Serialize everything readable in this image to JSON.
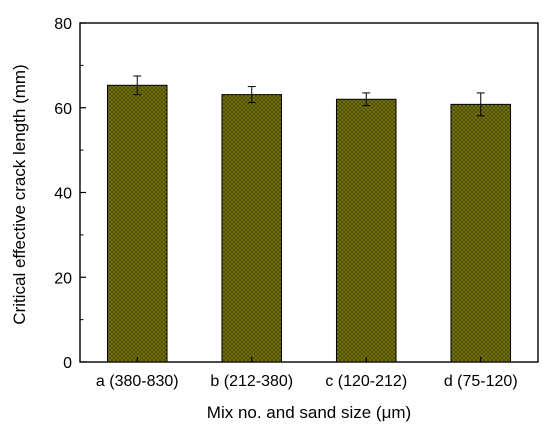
{
  "chart_data": {
    "type": "bar",
    "title": "",
    "xlabel": "Mix no. and sand size (μm)",
    "ylabel": "Critical effective crack length (mm)",
    "categories": [
      "a (380-830)",
      "b (212-380)",
      "c (120-212)",
      "d (75-120)"
    ],
    "values": [
      65.3,
      63.1,
      62.0,
      60.8
    ],
    "errors": [
      2.2,
      1.9,
      1.5,
      2.7
    ],
    "ylim": [
      0,
      80
    ],
    "yticks": [
      0,
      20,
      40,
      60,
      80
    ],
    "grid": false,
    "legend": "none",
    "bar_color": "#7a7a10",
    "bar_pattern": "crosshatch"
  }
}
